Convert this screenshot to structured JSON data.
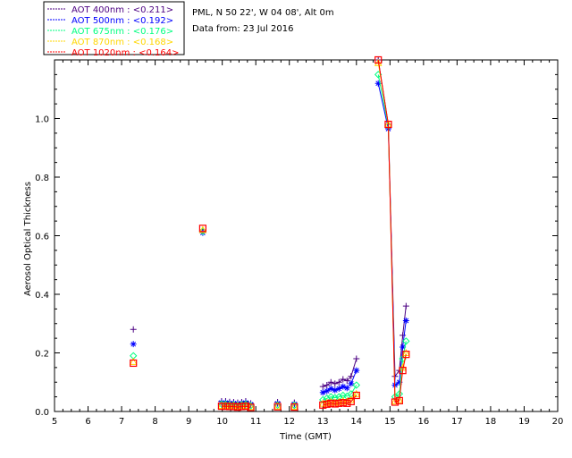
{
  "legend": [
    {
      "label": "AOT  400nm : <0.211>",
      "color": "#4b0082"
    },
    {
      "label": "AOT  500nm : <0.192>",
      "color": "#0000ff"
    },
    {
      "label": "AOT  675nm : <0.176>",
      "color": "#00ff80"
    },
    {
      "label": "AOT  870nm : <0.168>",
      "color": "#ffd700"
    },
    {
      "label": "AOT 1020nm : <0.164>",
      "color": "#ff0000"
    }
  ],
  "info": {
    "location": "PML, N 50 22', W 04 08', Alt 0m",
    "date": "Data from: 23 Jul 2016"
  },
  "chart_data": {
    "type": "scatter",
    "xlabel": "Time (GMT)",
    "ylabel": "Aerosol Optical Thickness",
    "xlim": [
      5,
      20
    ],
    "ylim": [
      0,
      1.2
    ],
    "x_ticks": [
      "5",
      "6",
      "7",
      "8",
      "9",
      "10",
      "11",
      "12",
      "13",
      "14",
      "15",
      "16",
      "17",
      "18",
      "19",
      "20"
    ],
    "y_ticks": [
      "0.0",
      "0.2",
      "0.4",
      "0.6",
      "0.8",
      "1.0"
    ],
    "x": [
      7.35,
      9.42,
      9.98,
      10.1,
      10.22,
      10.34,
      10.46,
      10.58,
      10.7,
      10.85,
      11.65,
      12.15,
      13.0,
      13.12,
      13.24,
      13.36,
      13.48,
      13.6,
      13.72,
      13.84,
      14.0,
      14.65,
      14.95,
      15.15,
      15.28,
      15.38,
      15.48
    ],
    "series": [
      {
        "name": "AOT  400nm",
        "values": [
          0.28,
          0.62,
          0.035,
          0.035,
          0.033,
          0.032,
          0.03,
          0.032,
          0.035,
          0.028,
          0.032,
          0.03,
          0.085,
          0.09,
          0.1,
          0.095,
          0.1,
          0.11,
          0.105,
          0.12,
          0.18,
          1.2,
          0.98,
          0.12,
          0.14,
          0.26,
          0.36
        ]
      },
      {
        "name": "AOT  500nm",
        "values": [
          0.23,
          0.61,
          0.03,
          0.03,
          0.028,
          0.028,
          0.026,
          0.028,
          0.03,
          0.024,
          0.027,
          0.025,
          0.065,
          0.07,
          0.078,
          0.073,
          0.078,
          0.085,
          0.08,
          0.095,
          0.14,
          1.12,
          0.965,
          0.09,
          0.1,
          0.22,
          0.31
        ]
      },
      {
        "name": "AOT  675nm",
        "values": [
          0.19,
          0.615,
          0.025,
          0.025,
          0.023,
          0.023,
          0.021,
          0.023,
          0.025,
          0.02,
          0.022,
          0.021,
          0.04,
          0.045,
          0.05,
          0.047,
          0.05,
          0.055,
          0.052,
          0.06,
          0.09,
          1.15,
          0.975,
          0.05,
          0.06,
          0.18,
          0.24
        ]
      },
      {
        "name": "AOT  870nm",
        "values": [
          0.17,
          0.62,
          0.02,
          0.02,
          0.019,
          0.019,
          0.017,
          0.019,
          0.02,
          0.016,
          0.018,
          0.017,
          0.027,
          0.03,
          0.033,
          0.031,
          0.033,
          0.036,
          0.034,
          0.04,
          0.06,
          1.19,
          0.98,
          0.035,
          0.04,
          0.15,
          0.2
        ]
      },
      {
        "name": "AOT 1020nm",
        "values": [
          0.165,
          0.625,
          0.018,
          0.018,
          0.017,
          0.017,
          0.015,
          0.017,
          0.018,
          0.014,
          0.016,
          0.015,
          0.022,
          0.025,
          0.028,
          0.026,
          0.028,
          0.03,
          0.028,
          0.034,
          0.055,
          1.2,
          0.98,
          0.032,
          0.037,
          0.14,
          0.195
        ]
      }
    ]
  }
}
